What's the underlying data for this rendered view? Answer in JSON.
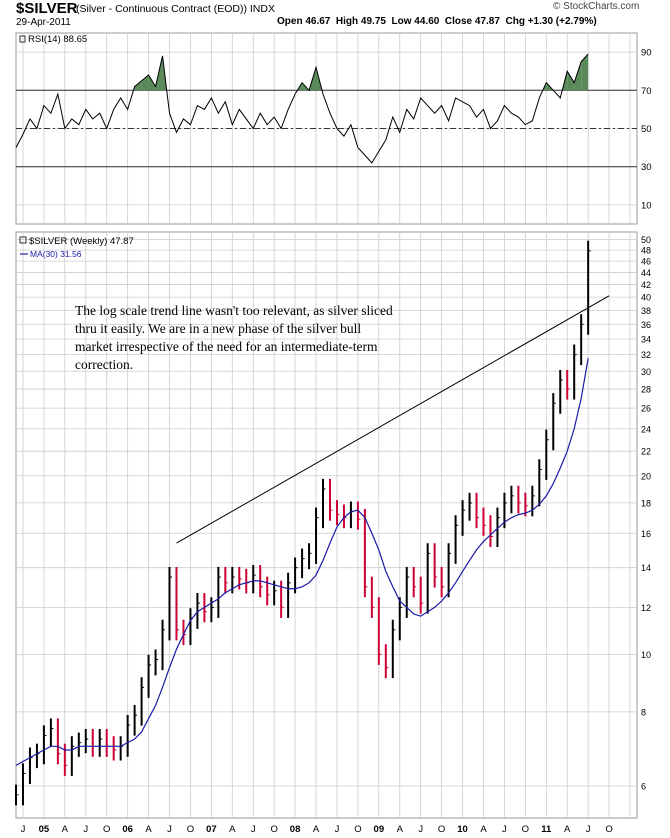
{
  "header": {
    "symbol": "$SILVER",
    "description": "(Silver - Continuous Contract (EOD))",
    "exchange": "INDX",
    "date": "29-Apr-2011",
    "open": "Open 46.67",
    "high": "High 49.75",
    "low": "Low 44.60",
    "close": "Close 47.87",
    "chg": "Chg +1.30 (+2.79%)",
    "watermark": "© StockCharts.com"
  },
  "annotation": "The log scale trend line wasn't too relevant, as silver sliced thru it easily. We are in a new phase of the silver bull market irrespective of the need for an intermediate-term correction.",
  "colors": {
    "up": "#000000",
    "down": "#cc0033",
    "ma": "#1a1aa6",
    "rsi_fill": "#5a8a5a",
    "grid": "#cccccc"
  },
  "chart_data": [
    {
      "type": "line",
      "title": "RSI(14) 88.65",
      "y_ticks": [
        10,
        30,
        50,
        70,
        90
      ],
      "ylim": [
        0,
        100
      ],
      "reference_lines": [
        30,
        50,
        70
      ],
      "x": [
        "2004-06",
        "2004-07",
        "2004-08",
        "2004-09",
        "2004-10",
        "2004-11",
        "2004-12",
        "2005-01",
        "2005-02",
        "2005-03",
        "2005-04",
        "2005-05",
        "2005-06",
        "2005-07",
        "2005-08",
        "2005-09",
        "2005-10",
        "2005-11",
        "2005-12",
        "2006-01",
        "2006-02",
        "2006-03",
        "2006-04",
        "2006-05",
        "2006-06",
        "2006-07",
        "2006-08",
        "2006-09",
        "2006-10",
        "2006-11",
        "2006-12",
        "2007-01",
        "2007-02",
        "2007-03",
        "2007-04",
        "2007-05",
        "2007-06",
        "2007-07",
        "2007-08",
        "2007-09",
        "2007-10",
        "2007-11",
        "2007-12",
        "2008-01",
        "2008-02",
        "2008-03",
        "2008-04",
        "2008-05",
        "2008-06",
        "2008-07",
        "2008-08",
        "2008-09",
        "2008-10",
        "2008-11",
        "2008-12",
        "2009-01",
        "2009-02",
        "2009-03",
        "2009-04",
        "2009-05",
        "2009-06",
        "2009-07",
        "2009-08",
        "2009-09",
        "2009-10",
        "2009-11",
        "2009-12",
        "2010-01",
        "2010-02",
        "2010-03",
        "2010-04",
        "2010-05",
        "2010-06",
        "2010-07",
        "2010-08",
        "2010-09",
        "2010-10",
        "2010-11",
        "2010-12",
        "2011-01",
        "2011-02",
        "2011-03",
        "2011-04"
      ],
      "values": [
        40,
        47,
        55,
        50,
        62,
        58,
        68,
        50,
        55,
        52,
        60,
        55,
        58,
        50,
        60,
        66,
        60,
        72,
        75,
        78,
        72,
        88,
        58,
        48,
        55,
        52,
        62,
        60,
        66,
        58,
        64,
        52,
        60,
        55,
        50,
        58,
        52,
        56,
        50,
        60,
        68,
        74,
        70,
        82,
        68,
        58,
        50,
        46,
        52,
        40,
        36,
        32,
        38,
        44,
        56,
        48,
        60,
        55,
        66,
        62,
        58,
        62,
        54,
        66,
        64,
        62,
        56,
        60,
        50,
        54,
        62,
        58,
        56,
        52,
        54,
        66,
        74,
        70,
        66,
        80,
        74,
        85,
        89
      ]
    },
    {
      "type": "line",
      "title": "$SILVER (Weekly) 47.87",
      "scale": "log",
      "y_ticks": [
        6,
        8,
        10,
        12,
        14,
        16,
        18,
        20,
        22,
        24,
        26,
        28,
        30,
        32,
        34,
        36,
        38,
        40,
        42,
        44,
        46,
        48,
        50
      ],
      "x_ticks": [
        "J",
        "05",
        "A",
        "J",
        "O",
        "06",
        "A",
        "J",
        "O",
        "07",
        "A",
        "J",
        "O",
        "08",
        "A",
        "J",
        "O",
        "09",
        "A",
        "J",
        "O",
        "10",
        "A",
        "J",
        "O",
        "11",
        "A",
        "J",
        "O"
      ],
      "x": [
        "2004-06",
        "2004-07",
        "2004-08",
        "2004-09",
        "2004-10",
        "2004-11",
        "2004-12",
        "2005-01",
        "2005-02",
        "2005-03",
        "2005-04",
        "2005-05",
        "2005-06",
        "2005-07",
        "2005-08",
        "2005-09",
        "2005-10",
        "2005-11",
        "2005-12",
        "2006-01",
        "2006-02",
        "2006-03",
        "2006-04",
        "2006-05",
        "2006-06",
        "2006-07",
        "2006-08",
        "2006-09",
        "2006-10",
        "2006-11",
        "2006-12",
        "2007-01",
        "2007-02",
        "2007-03",
        "2007-04",
        "2007-05",
        "2007-06",
        "2007-07",
        "2007-08",
        "2007-09",
        "2007-10",
        "2007-11",
        "2007-12",
        "2008-01",
        "2008-02",
        "2008-03",
        "2008-04",
        "2008-05",
        "2008-06",
        "2008-07",
        "2008-08",
        "2008-09",
        "2008-10",
        "2008-11",
        "2008-12",
        "2009-01",
        "2009-02",
        "2009-03",
        "2009-04",
        "2009-05",
        "2009-06",
        "2009-07",
        "2009-08",
        "2009-09",
        "2009-10",
        "2009-11",
        "2009-12",
        "2010-01",
        "2010-02",
        "2010-03",
        "2010-04",
        "2010-05",
        "2010-06",
        "2010-07",
        "2010-08",
        "2010-09",
        "2010-10",
        "2010-11",
        "2010-12",
        "2011-01",
        "2011-02",
        "2011-03",
        "2011-04"
      ],
      "series": [
        {
          "name": "$SILVER",
          "values": [
            5.8,
            6.3,
            6.7,
            6.8,
            7.3,
            7.5,
            6.8,
            6.5,
            7.0,
            7.1,
            7.2,
            7.0,
            7.2,
            7.0,
            6.9,
            7.0,
            7.6,
            7.9,
            8.8,
            9.6,
            9.8,
            11.0,
            13.5,
            11.0,
            10.8,
            11.5,
            12.2,
            11.8,
            12.0,
            13.5,
            13.2,
            13.5,
            13.4,
            13.2,
            13.6,
            13.0,
            12.6,
            12.8,
            12.0,
            13.2,
            14.0,
            14.5,
            14.8,
            17.0,
            19.0,
            17.5,
            17.2,
            17.0,
            17.4,
            16.9,
            13.0,
            12.0,
            10.0,
            9.5,
            11.0,
            12.0,
            13.5,
            13.0,
            12.2,
            14.8,
            13.5,
            13.0,
            14.8,
            16.5,
            17.5,
            18.0,
            17.0,
            16.5,
            15.8,
            17.0,
            18.0,
            18.5,
            18.0,
            17.8,
            18.5,
            20.5,
            23.0,
            26.5,
            29.0,
            28.0,
            32.0,
            36.0,
            47.87
          ]
        },
        {
          "name": "MA(30) 31.56",
          "values": [
            6.5,
            6.6,
            6.7,
            6.8,
            6.9,
            7.0,
            7.0,
            6.9,
            6.9,
            7.0,
            7.0,
            7.0,
            7.0,
            7.0,
            7.0,
            7.0,
            7.1,
            7.2,
            7.4,
            7.8,
            8.2,
            8.8,
            9.5,
            10.2,
            10.8,
            11.4,
            11.8,
            12.0,
            12.2,
            12.4,
            12.7,
            12.9,
            13.1,
            13.2,
            13.3,
            13.3,
            13.2,
            13.1,
            13.0,
            12.9,
            12.9,
            13.0,
            13.2,
            13.6,
            14.4,
            15.4,
            16.4,
            17.0,
            17.4,
            17.5,
            17.0,
            16.0,
            15.0,
            13.8,
            13.0,
            12.3,
            12.0,
            11.7,
            11.6,
            11.8,
            12.0,
            12.3,
            12.7,
            13.2,
            13.8,
            14.4,
            15.0,
            15.5,
            15.9,
            16.3,
            16.7,
            17.0,
            17.2,
            17.3,
            17.5,
            17.9,
            18.5,
            19.4,
            20.6,
            22.0,
            24.0,
            27.0,
            31.56
          ]
        }
      ],
      "trend_line": {
        "x": [
          "2006-05",
          "2011-07"
        ],
        "y": [
          15.4,
          40.2
        ]
      }
    }
  ]
}
